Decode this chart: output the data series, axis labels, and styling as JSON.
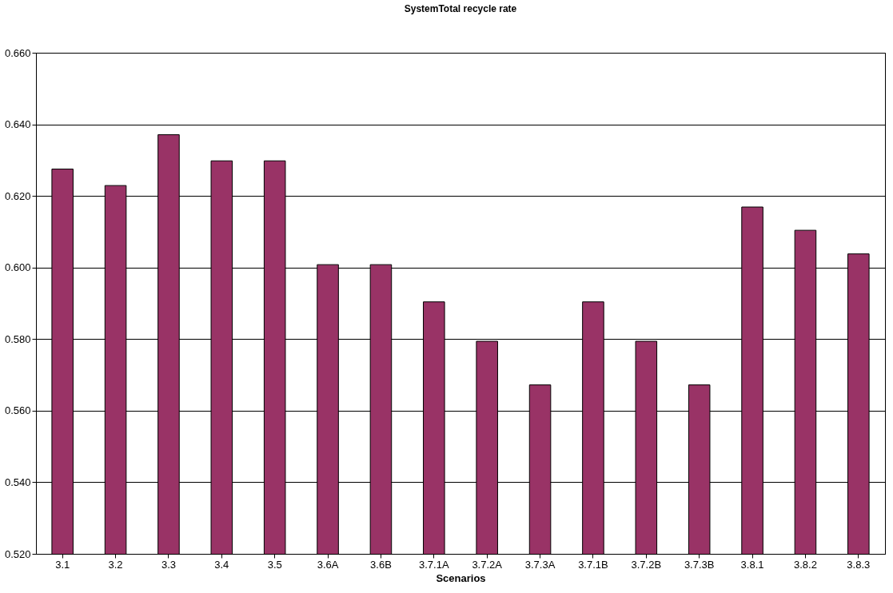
{
  "chart_data": {
    "type": "bar",
    "title": "SystemTotal recycle rate",
    "xlabel": "Scenarios",
    "categories": [
      "3.1",
      "3.2",
      "3.3",
      "3.4",
      "3.5",
      "3.6A",
      "3.6B",
      "3.7.1A",
      "3.7.2A",
      "3.7.3A",
      "3.7.1B",
      "3.7.2B",
      "3.7.3B",
      "3.8.1",
      "3.8.2",
      "3.8.3"
    ],
    "values": [
      0.6275,
      0.6229,
      0.6371,
      0.6298,
      0.6298,
      0.6008,
      0.6008,
      0.5904,
      0.5794,
      0.5672,
      0.5904,
      0.5794,
      0.5672,
      0.6169,
      0.6104,
      0.6038
    ],
    "color": "#993366",
    "ylim": [
      0.52,
      0.66
    ],
    "yticks": [
      {
        "value": 0.52,
        "label": "0.520"
      },
      {
        "value": 0.54,
        "label": "0.540"
      },
      {
        "value": 0.56,
        "label": "0.560"
      },
      {
        "value": 0.58,
        "label": "0.580"
      },
      {
        "value": 0.6,
        "label": "0.600"
      },
      {
        "value": 0.62,
        "label": "0.620"
      },
      {
        "value": 0.64,
        "label": "0.640"
      },
      {
        "value": 0.66,
        "label": "0.660"
      }
    ],
    "grid": "y"
  }
}
